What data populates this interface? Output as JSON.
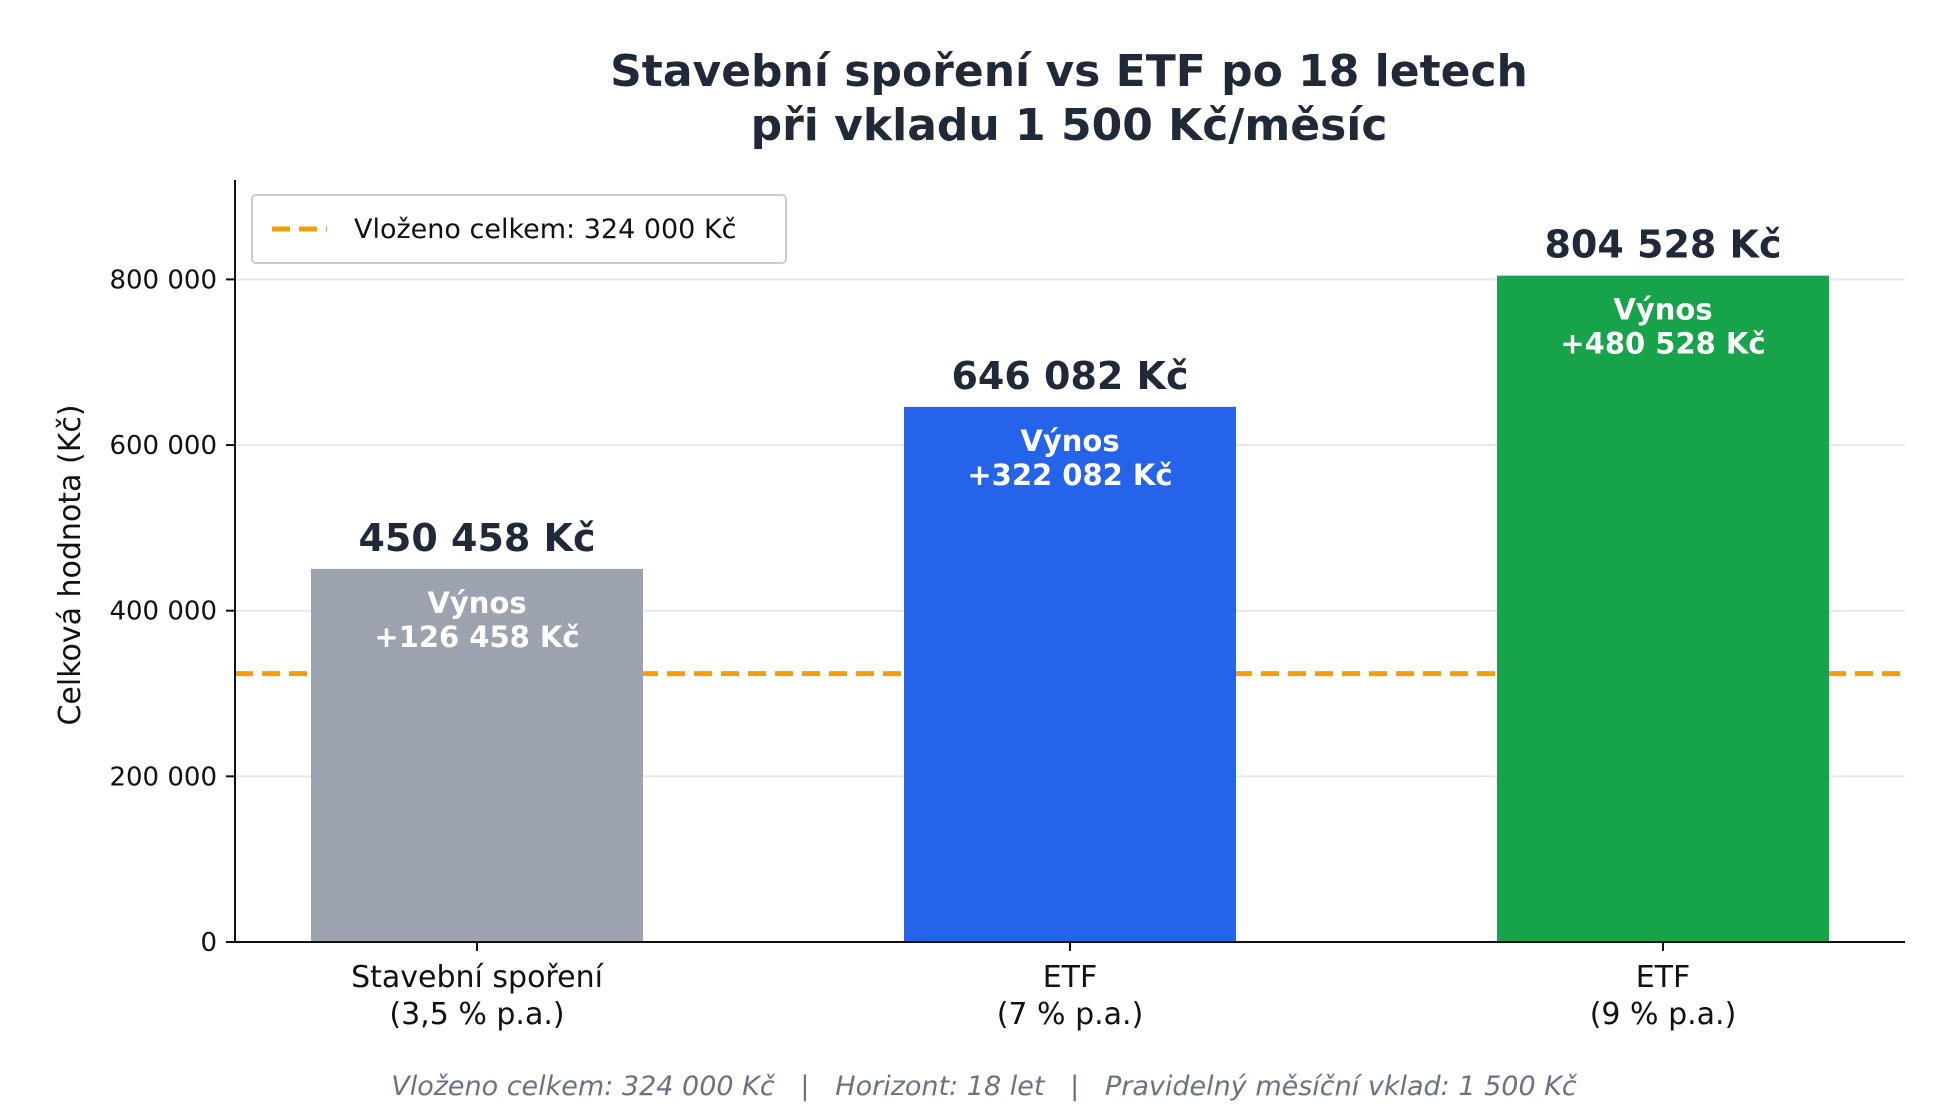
{
  "chart_data": {
    "type": "bar",
    "title_line1": "Stavební spoření vs ETF po 18 letech",
    "title_line2": "při vkladu 1 500 Kč/měsíc",
    "ylabel": "Celková hodnota (Kč)",
    "xlabel": "",
    "ylim": [
      0,
      920000
    ],
    "y_ticks": [
      0,
      200000,
      400000,
      600000,
      800000
    ],
    "y_tick_labels": [
      "0",
      "200 000",
      "400 000",
      "600 000",
      "800 000"
    ],
    "grid": "horizontal",
    "categories": [
      {
        "line1": "Stavební spoření",
        "line2": "(3,5 % p.a.)"
      },
      {
        "line1": "ETF",
        "line2": "(7 % p.a.)"
      },
      {
        "line1": "ETF",
        "line2": "(9 % p.a.)"
      }
    ],
    "values": [
      450458,
      646082,
      804528
    ],
    "value_labels": [
      "450 458 Kč",
      "646 082 Kč",
      "804 528 Kč"
    ],
    "gain_title": "Výnos",
    "gain_labels": [
      "+126 458 Kč",
      "+322 082 Kč",
      "+480 528 Kč"
    ],
    "colors": [
      "#9ca3af",
      "#2563eb",
      "#16a34a"
    ],
    "reference_line": {
      "value": 324000,
      "label": "Vloženo celkem: 324 000 Kč",
      "color": "#f59e0b",
      "style": "dashed"
    },
    "legend_position": "top-left",
    "footer": "Vloženo celkem: 324 000 Kč   |   Horizont: 18 let   |   Pravidelný měsíční vklad: 1 500 Kč"
  }
}
